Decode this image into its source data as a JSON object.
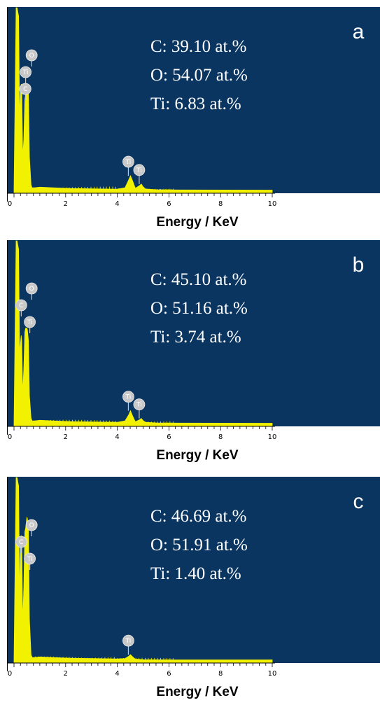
{
  "colors": {
    "plot_background": "#0a3561",
    "spectrum": "#f2f200",
    "axis": "#000000",
    "marker": "#c8c8c8",
    "text": "#ffffff"
  },
  "chart_data": [
    {
      "type": "area",
      "panel": "a",
      "xlabel": "Energy / KeV",
      "ylabel": "",
      "xlim": [
        0,
        10
      ],
      "xticks": [
        0,
        2,
        4,
        6,
        8,
        10
      ],
      "grid": false,
      "composition": [
        {
          "element": "C",
          "text": "C: 39.10 at.%"
        },
        {
          "element": "O",
          "text": "O: 54.07 at.%"
        },
        {
          "element": "Ti",
          "text": "Ti: 6.83 at.%"
        }
      ],
      "peak_markers": [
        {
          "label": "O",
          "energy": 0.52
        },
        {
          "label": "Ti",
          "energy": 0.45
        },
        {
          "label": "C",
          "energy": 0.28
        },
        {
          "label": "Ti",
          "energy": 4.51
        },
        {
          "label": "Ti",
          "energy": 4.93
        }
      ],
      "series": [
        {
          "values": {
            "x": [
              0.0,
              0.08,
              0.12,
              0.18,
              0.22,
              0.26,
              0.28,
              0.3,
              0.34,
              0.38,
              0.42,
              0.45,
              0.5,
              0.52,
              0.56,
              0.6,
              0.66,
              0.7,
              0.8,
              1.0,
              1.5,
              2.0,
              2.5,
              3.0,
              3.5,
              4.0,
              4.3,
              4.45,
              4.51,
              4.6,
              4.7,
              4.85,
              4.93,
              5.0,
              5.1,
              5.5,
              6.0,
              10.0
            ],
            "y": [
              0,
              100,
              100,
              95,
              40,
              55,
              58,
              55,
              18,
              28,
              50,
              52,
              58,
              57,
              52,
              18,
              3,
              1.5,
              1.5,
              1.8,
              1.5,
              1.2,
              1.0,
              0.9,
              0.8,
              0.7,
              1.5,
              6,
              8,
              5,
              1.2,
              2.5,
              3.5,
              2.0,
              0.8,
              0.4,
              0.3,
              0.2
            ]
          }
        }
      ]
    },
    {
      "type": "area",
      "panel": "b",
      "xlabel": "Energy / KeV",
      "ylabel": "",
      "xlim": [
        0,
        10
      ],
      "xticks": [
        0,
        2,
        4,
        6,
        8,
        10
      ],
      "grid": false,
      "composition": [
        {
          "element": "C",
          "text": "C: 45.10 at.%"
        },
        {
          "element": "O",
          "text": "O: 51.16 at.%"
        },
        {
          "element": "Ti",
          "text": "Ti: 3.74 at.%"
        }
      ],
      "peak_markers": [
        {
          "label": "O",
          "energy": 0.52
        },
        {
          "label": "C",
          "energy": 0.28
        },
        {
          "label": "Ti",
          "energy": 0.45
        },
        {
          "label": "Ti",
          "energy": 4.51
        },
        {
          "label": "Ti",
          "energy": 4.93
        }
      ],
      "series": [
        {
          "values": {
            "x": [
              0.0,
              0.08,
              0.12,
              0.18,
              0.22,
              0.26,
              0.28,
              0.3,
              0.34,
              0.38,
              0.42,
              0.45,
              0.5,
              0.52,
              0.56,
              0.6,
              0.66,
              0.7,
              0.8,
              1.0,
              1.5,
              2.0,
              2.5,
              3.0,
              3.5,
              4.0,
              4.3,
              4.45,
              4.51,
              4.6,
              4.7,
              4.85,
              4.93,
              5.0,
              5.1,
              5.5,
              6.0,
              10.0
            ],
            "y": [
              0,
              100,
              100,
              95,
              38,
              45,
              48,
              45,
              16,
              30,
              50,
              52,
              52,
              51,
              45,
              15,
              3,
              1.5,
              1.5,
              1.8,
              1.5,
              1.2,
              1.0,
              0.9,
              0.8,
              0.7,
              1.5,
              5,
              7,
              4,
              1.0,
              2.0,
              2.8,
              1.6,
              0.7,
              0.4,
              0.3,
              0.2
            ]
          }
        }
      ]
    },
    {
      "type": "area",
      "panel": "c",
      "xlabel": "Energy / KeV",
      "ylabel": "",
      "xlim": [
        0,
        10
      ],
      "xticks": [
        0,
        2,
        4,
        6,
        8,
        10
      ],
      "grid": false,
      "composition": [
        {
          "element": "C",
          "text": "C: 46.69 at.%"
        },
        {
          "element": "O",
          "text": "O: 51.91 at.%"
        },
        {
          "element": "Ti",
          "text": "Ti: 1.40 at.%"
        }
      ],
      "peak_markers": [
        {
          "label": "O",
          "energy": 0.52
        },
        {
          "label": "C",
          "energy": 0.28
        },
        {
          "label": "Ti",
          "energy": 0.45
        },
        {
          "label": "Ti",
          "energy": 4.51
        }
      ],
      "series": [
        {
          "values": {
            "x": [
              0.0,
              0.08,
              0.12,
              0.18,
              0.22,
              0.26,
              0.28,
              0.3,
              0.34,
              0.38,
              0.42,
              0.45,
              0.5,
              0.52,
              0.56,
              0.6,
              0.66,
              0.7,
              0.8,
              1.0,
              1.5,
              2.0,
              2.5,
              3.0,
              3.5,
              4.0,
              4.3,
              4.45,
              4.51,
              4.6,
              4.7,
              5.0,
              6.0,
              10.0
            ],
            "y": [
              0,
              100,
              100,
              95,
              35,
              65,
              68,
              65,
              20,
              40,
              70,
              72,
              78,
              77,
              70,
              22,
              3,
              1.5,
              1.5,
              1.8,
              1.5,
              1.2,
              1.0,
              0.9,
              0.8,
              0.7,
              0.9,
              2.2,
              3.0,
              1.8,
              0.6,
              0.3,
              0.2,
              0.2
            ]
          }
        }
      ]
    }
  ]
}
